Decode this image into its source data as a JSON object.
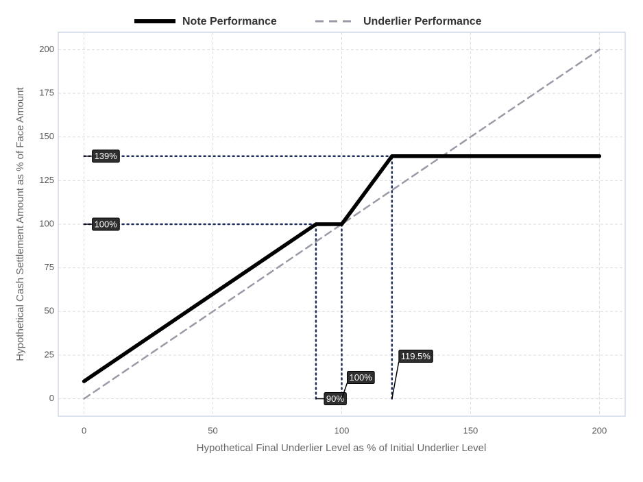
{
  "chart_data": {
    "type": "line",
    "x_label": "Hypothetical Final Underlier Level as % of Initial Underlier Level",
    "y_label": "Hypothetical Cash Settlement Amount as % of Face Amount",
    "xlim": [
      -10,
      210
    ],
    "ylim": [
      -10,
      210
    ],
    "xticks": [
      0,
      50,
      100,
      150,
      200
    ],
    "yticks": [
      0,
      25,
      50,
      75,
      100,
      125,
      150,
      175,
      200
    ],
    "grid": true,
    "series": [
      {
        "name": "Note Performance",
        "color": "#000000",
        "style": "solid",
        "x": [
          0,
          90,
          100,
          119.5,
          200
        ],
        "values": [
          10,
          100,
          100,
          139,
          139
        ]
      },
      {
        "name": "Underlier Performance",
        "color": "#9a9aa6",
        "style": "dashed",
        "x": [
          0,
          200
        ],
        "values": [
          0,
          200
        ]
      }
    ],
    "annotations": [
      {
        "label": "139%",
        "axis": "y",
        "value": 139,
        "extent": 119.5
      },
      {
        "label": "100%",
        "axis": "y",
        "value": 100,
        "extent": 100
      },
      {
        "label": "90%",
        "axis": "x",
        "value": 90,
        "extent": 100
      },
      {
        "label": "100%",
        "axis": "x",
        "value": 100,
        "extent": 100
      },
      {
        "label": "119.5%",
        "axis": "x",
        "value": 119.5,
        "extent": 139
      }
    ],
    "annotation_line_color": "#1f2d5c"
  }
}
